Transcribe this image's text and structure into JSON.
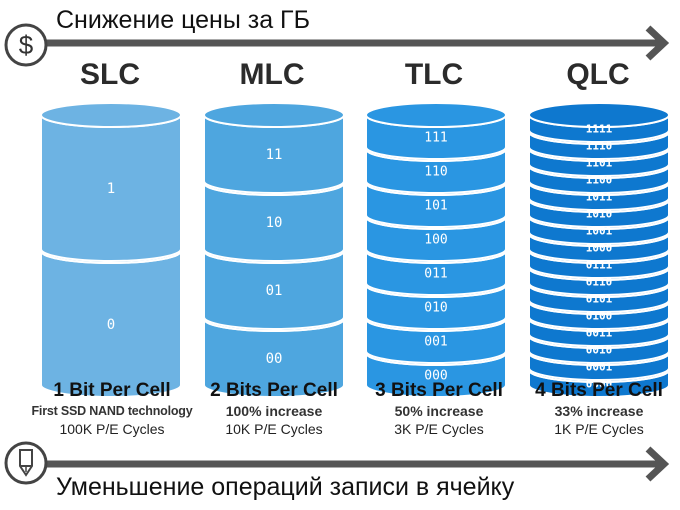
{
  "header": {
    "title": "Снижение цены за ГБ",
    "icon": "dollar-icon"
  },
  "footer": {
    "title": "Уменьшение операций записи в ячейку",
    "icon": "pencil-icon"
  },
  "colors": {
    "arrow": "#555555",
    "slc": "#6db3e3",
    "mlc": "#4ea6df",
    "tlc": "#2a96e2",
    "qlc": "#0e78cf",
    "stroke": "#ffffff"
  },
  "columns": [
    {
      "type": "SLC",
      "bits_label": "1 Bit Per Cell",
      "line2": "First SSD NAND technology",
      "line3": "100K P/E Cycles",
      "values": [
        "1",
        "0"
      ]
    },
    {
      "type": "MLC",
      "bits_label": "2 Bits Per Cell",
      "line2": "100% increase",
      "line3": "10K P/E Cycles",
      "values": [
        "11",
        "10",
        "01",
        "00"
      ]
    },
    {
      "type": "TLC",
      "bits_label": "3 Bits Per Cell",
      "line2": "50% increase",
      "line3": "3K P/E Cycles",
      "values": [
        "111",
        "110",
        "101",
        "100",
        "011",
        "010",
        "001",
        "000"
      ]
    },
    {
      "type": "QLC",
      "bits_label": "4 Bits Per Cell",
      "line2": "33% increase",
      "line3": "1K P/E Cycles",
      "values": [
        "1111",
        "1110",
        "1101",
        "1100",
        "1011",
        "1010",
        "1001",
        "1000",
        "0111",
        "0110",
        "0101",
        "0100",
        "0011",
        "0010",
        "0001",
        "0000"
      ]
    }
  ]
}
